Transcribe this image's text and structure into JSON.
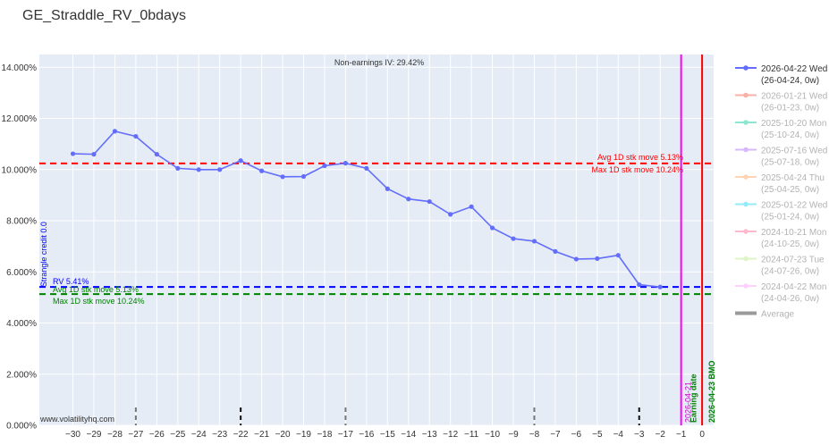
{
  "chart_data": {
    "type": "line",
    "title": "GE_Straddle_RV_0bdays",
    "xlabel": "",
    "ylabel": "",
    "xlim": [
      -31.6,
      0.55
    ],
    "ylim": [
      0,
      14.5
    ],
    "x_ticks": [
      -30,
      -29,
      -28,
      -27,
      -26,
      -25,
      -24,
      -23,
      -22,
      -21,
      -20,
      -19,
      -18,
      -17,
      -16,
      -15,
      -14,
      -13,
      -12,
      -11,
      -10,
      -9,
      -8,
      -7,
      -6,
      -5,
      -4,
      -3,
      -2,
      -1,
      0
    ],
    "y_ticks": [
      0,
      2,
      4,
      6,
      8,
      10,
      12,
      14
    ],
    "y_tick_labels": [
      "0.000%",
      "2.000%",
      "4.000%",
      "6.000%",
      "8.000%",
      "10.000%",
      "12.000%",
      "14.000%"
    ],
    "grid": true,
    "legend_position": "right",
    "series": [
      {
        "name": "2026-04-22 Wed (26-04-24, 0w)",
        "legend_lines": [
          "2026-04-22 Wed",
          "(26-04-24, 0w)"
        ],
        "color": "#636efa",
        "x": [
          -30,
          -29,
          -28,
          -27,
          -26,
          -25,
          -24,
          -23,
          -22,
          -21,
          -20,
          -19,
          -18,
          -17,
          -16,
          -15,
          -14,
          -13,
          -12,
          -11,
          -10,
          -9,
          -8,
          -7,
          -6,
          -5,
          -4,
          -3,
          -2
        ],
        "values": [
          10.62,
          10.6,
          11.5,
          11.3,
          10.6,
          10.05,
          10.0,
          10.0,
          10.35,
          9.95,
          9.72,
          9.73,
          10.15,
          10.25,
          10.05,
          9.25,
          8.85,
          8.75,
          8.25,
          8.55,
          7.72,
          7.3,
          7.2,
          6.8,
          6.5,
          6.52,
          6.65,
          5.5,
          5.41
        ]
      }
    ],
    "legend_inactive": [
      {
        "lines": [
          "2026-01-21 Wed",
          "(26-01-23, 0w)"
        ],
        "color": "#ef553b"
      },
      {
        "lines": [
          "2025-10-20 Mon",
          "(25-10-24, 0w)"
        ],
        "color": "#00cc96"
      },
      {
        "lines": [
          "2025-07-16 Wed",
          "(25-07-18, 0w)"
        ],
        "color": "#ab63fa"
      },
      {
        "lines": [
          "2025-04-24 Thu",
          "(25-04-25, 0w)"
        ],
        "color": "#ffa15a"
      },
      {
        "lines": [
          "2025-01-22 Wed",
          "(25-01-24, 0w)"
        ],
        "color": "#19d3f3"
      },
      {
        "lines": [
          "2024-10-21 Mon",
          "(24-10-25, 0w)"
        ],
        "color": "#ff6692"
      },
      {
        "lines": [
          "2024-07-23 Tue",
          "(24-07-26, 0w)"
        ],
        "color": "#b6e880"
      },
      {
        "lines": [
          "2024-04-22 Mon",
          "(24-04-26, 0w)"
        ],
        "color": "#ff97ff"
      },
      {
        "lines": [
          "Average"
        ],
        "color": "#222222",
        "thick": true
      }
    ],
    "hlines": [
      {
        "y": 10.24,
        "color": "#ff0000"
      },
      {
        "y": 5.41,
        "color": "#0000ff"
      },
      {
        "y": 5.13,
        "color": "#008000"
      }
    ],
    "vlines": [
      {
        "x": -1,
        "color": "#ff00ff"
      },
      {
        "x": 0,
        "color": "#ff0000"
      }
    ],
    "tick_marks": [
      {
        "x": -27,
        "color": "#777777"
      },
      {
        "x": -22,
        "color": "#111111"
      },
      {
        "x": -17,
        "color": "#777777"
      },
      {
        "x": -8,
        "color": "#777777"
      },
      {
        "x": -3,
        "color": "#111111"
      }
    ],
    "annotations": {
      "nonearn_iv": "Non-earnings IV: 29.42%",
      "red_avg": "Avg 1D stk move 5.13%",
      "red_max": "Max 1D stk move 10.24%",
      "rv": "RV 5.41%",
      "green_avg": "Avg 1D stk move 5.13%",
      "green_max": "Max 1D stk move 10.24%",
      "strangle": "Strangle credit 0.0",
      "earning_date": "Earning date",
      "magenta_date": "2026-04-21",
      "bmo": "2026-04-23 BMO",
      "watermark": "www.volatilityhq.com"
    },
    "colors": {
      "plot_bg": "#e5ecf6",
      "grid": "#ffffff",
      "annot_red": "#ff0000",
      "annot_blue": "#0000ff",
      "annot_green": "#008000",
      "annot_magenta": "#cc00cc"
    }
  }
}
